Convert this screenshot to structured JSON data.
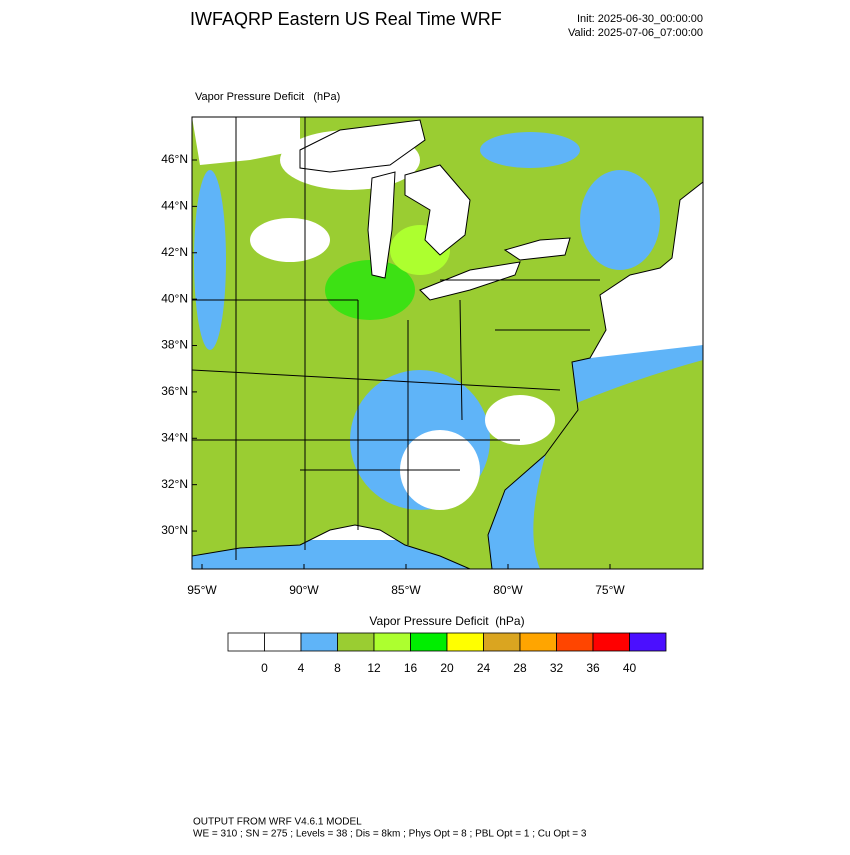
{
  "header": {
    "title": "IWFAQRP Eastern US Real Time WRF",
    "init": "Init: 2025-06-30_00:00:00",
    "valid": "Valid: 2025-07-06_07:00:00"
  },
  "map": {
    "field_label": "Vapor Pressure Deficit   (hPa)",
    "lat_ticks": [
      {
        "value": 46,
        "label": "46°N"
      },
      {
        "value": 44,
        "label": "44°N"
      },
      {
        "value": 42,
        "label": "42°N"
      },
      {
        "value": 40,
        "label": "40°N"
      },
      {
        "value": 38,
        "label": "38°N"
      },
      {
        "value": 36,
        "label": "36°N"
      },
      {
        "value": 34,
        "label": "34°N"
      },
      {
        "value": 32,
        "label": "32°N"
      },
      {
        "value": 30,
        "label": "30°N"
      }
    ],
    "lon_ticks": [
      {
        "value": -95,
        "label": "95°W"
      },
      {
        "value": -90,
        "label": "90°W"
      },
      {
        "value": -85,
        "label": "85°W"
      },
      {
        "value": -80,
        "label": "80°W"
      },
      {
        "value": -75,
        "label": "75°W"
      }
    ]
  },
  "colorbar": {
    "title": "Vapor Pressure Deficit  (hPa)",
    "levels": [
      0,
      4,
      8,
      12,
      16,
      20,
      24,
      28,
      32,
      36,
      40
    ],
    "colors": [
      "#ffffff",
      "#ffffff",
      "#5fb4f8",
      "#9acd32",
      "#adff2f",
      "#00ee00",
      "#ffff00",
      "#daa520",
      "#ffa500",
      "#ff4500",
      "#ff0000",
      "#4b0fff"
    ]
  },
  "footer": {
    "line1": "OUTPUT FROM WRF V4.6.1 MODEL",
    "line2": "WE = 310 ; SN = 275 ; Levels = 38 ; Dis = 8km ; Phys Opt = 8 ; PBL Opt = 1 ; Cu Opt = 3"
  }
}
